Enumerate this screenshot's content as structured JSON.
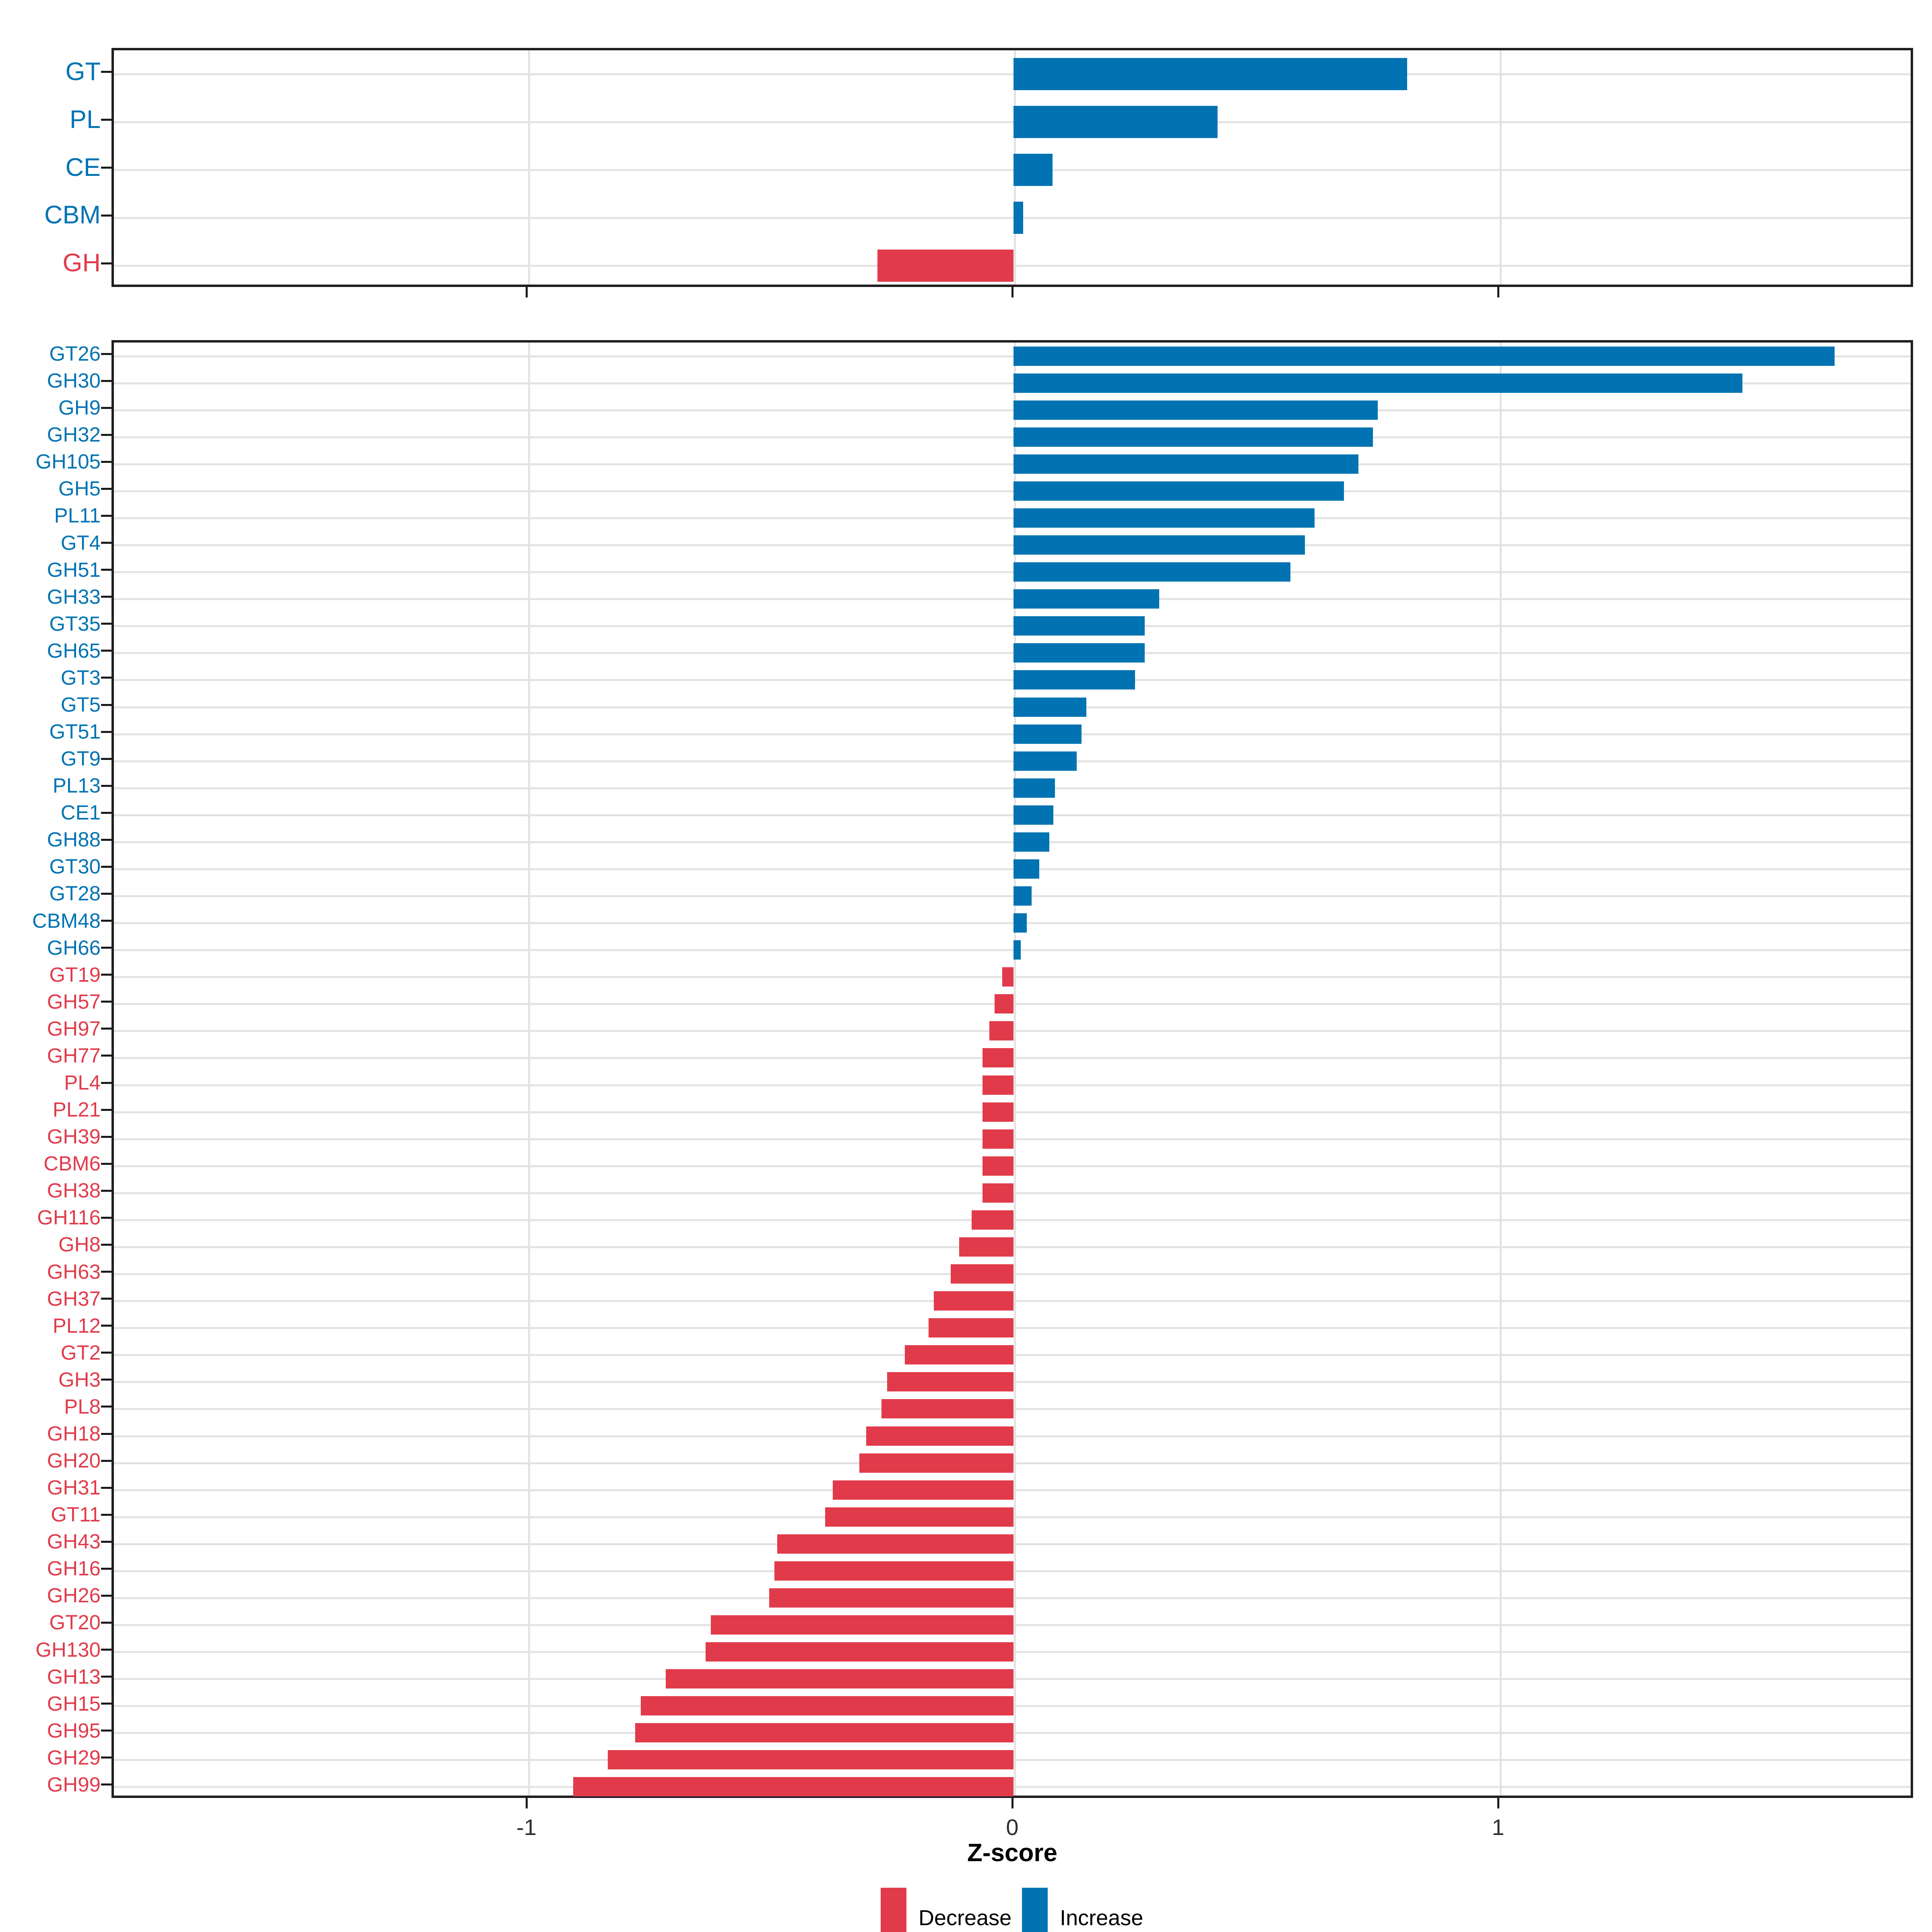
{
  "axis": {
    "title": "Z-score",
    "tick_labels": [
      "-1",
      "0",
      "1"
    ],
    "tick_values": [
      -1,
      0,
      1
    ]
  },
  "colors": {
    "Increase": "#0173B2",
    "Decrease": "#E13B4B"
  },
  "legend": {
    "position": "bottom",
    "items": [
      {
        "label": "Decrease",
        "color": "#E13B4B"
      },
      {
        "label": "Increase",
        "color": "#0173B2"
      }
    ]
  },
  "chart_data": [
    {
      "type": "bar",
      "orientation": "horizontal",
      "panel": "cazyme-class-summary",
      "grid": true,
      "xlim": [
        -1.854,
        1.854
      ],
      "xticks": [
        -1,
        0,
        1
      ],
      "categories": [
        "GT",
        "PL",
        "CE",
        "CBM",
        "GH"
      ],
      "values": [
        0.81,
        0.42,
        0.08,
        0.02,
        -0.28
      ],
      "groups": [
        "Increase",
        "Increase",
        "Increase",
        "Increase",
        "Decrease"
      ]
    },
    {
      "type": "bar",
      "orientation": "horizontal",
      "panel": "cazyme-family-detail",
      "grid": true,
      "xlim": [
        -1.854,
        1.854
      ],
      "xticks": [
        -1,
        0,
        1
      ],
      "xlabel": "Z-score",
      "categories": [
        "GT26",
        "GH30",
        "GH9",
        "GH32",
        "GH105",
        "GH5",
        "PL11",
        "GT4",
        "GH51",
        "GH33",
        "GT35",
        "GH65",
        "GT3",
        "GT5",
        "GT51",
        "GT9",
        "PL13",
        "CE1",
        "GH88",
        "GT30",
        "GT28",
        "CBM48",
        "GH66",
        "GT19",
        "GH57",
        "GH97",
        "GH77",
        "PL4",
        "PL21",
        "GH39",
        "CBM6",
        "GH38",
        "GH116",
        "GH8",
        "GH63",
        "GH37",
        "PL12",
        "GT2",
        "GH3",
        "PL8",
        "GH18",
        "GH20",
        "GH31",
        "GT11",
        "GH43",
        "GH16",
        "GH26",
        "GT20",
        "GH130",
        "GH13",
        "GH15",
        "GH95",
        "GH29",
        "GH99"
      ],
      "values": [
        1.69,
        1.5,
        0.75,
        0.74,
        0.71,
        0.68,
        0.62,
        0.6,
        0.57,
        0.3,
        0.27,
        0.27,
        0.25,
        0.15,
        0.14,
        0.13,
        0.085,
        0.082,
        0.074,
        0.053,
        0.037,
        0.027,
        0.015,
        -0.023,
        -0.039,
        -0.05,
        -0.064,
        -0.064,
        -0.064,
        -0.064,
        -0.064,
        -0.064,
        -0.086,
        -0.112,
        -0.129,
        -0.164,
        -0.175,
        -0.224,
        -0.26,
        -0.272,
        -0.303,
        -0.317,
        -0.372,
        -0.388,
        -0.486,
        -0.492,
        -0.503,
        -0.623,
        -0.634,
        -0.716,
        -0.767,
        -0.779,
        -0.835,
        -0.906
      ],
      "groups": [
        "Increase",
        "Increase",
        "Increase",
        "Increase",
        "Increase",
        "Increase",
        "Increase",
        "Increase",
        "Increase",
        "Increase",
        "Increase",
        "Increase",
        "Increase",
        "Increase",
        "Increase",
        "Increase",
        "Increase",
        "Increase",
        "Increase",
        "Increase",
        "Increase",
        "Increase",
        "Increase",
        "Decrease",
        "Decrease",
        "Decrease",
        "Decrease",
        "Decrease",
        "Decrease",
        "Decrease",
        "Decrease",
        "Decrease",
        "Decrease",
        "Decrease",
        "Decrease",
        "Decrease",
        "Decrease",
        "Decrease",
        "Decrease",
        "Decrease",
        "Decrease",
        "Decrease",
        "Decrease",
        "Decrease",
        "Decrease",
        "Decrease",
        "Decrease",
        "Decrease",
        "Decrease",
        "Decrease",
        "Decrease",
        "Decrease",
        "Decrease",
        "Decrease"
      ]
    }
  ]
}
